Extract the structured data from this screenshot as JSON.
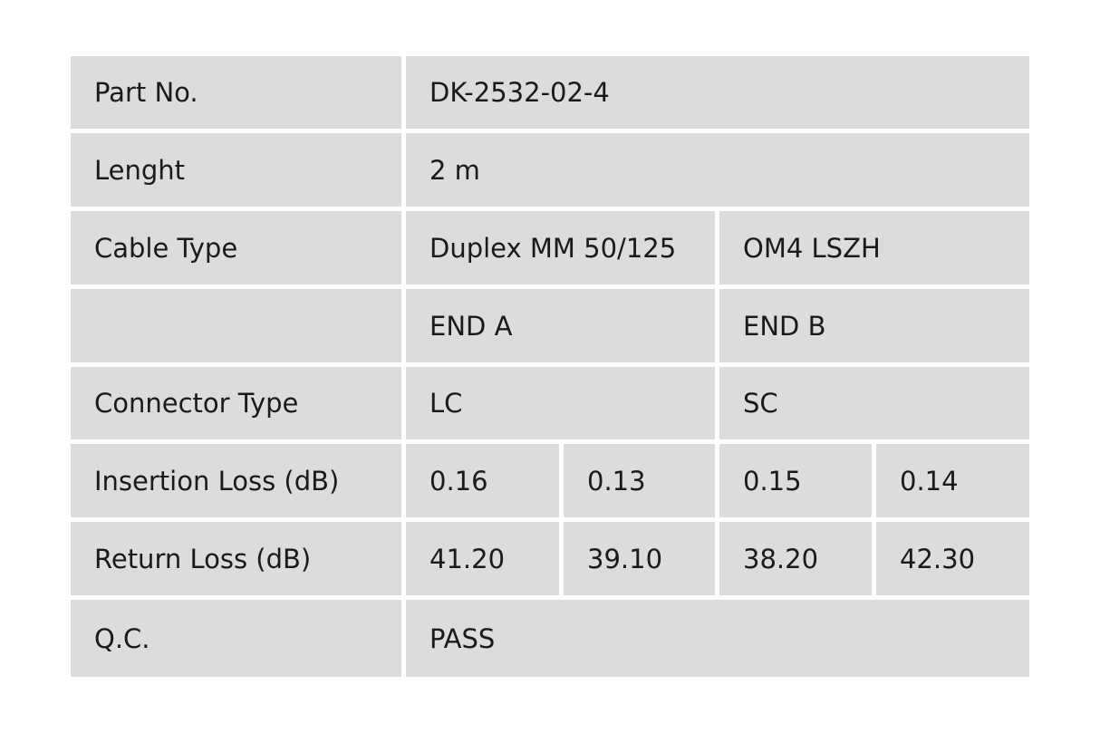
{
  "rows": {
    "part_no": {
      "label": "Part No.",
      "value": "DK-2532-02-4"
    },
    "length": {
      "label": "Lenght",
      "value": "2 m"
    },
    "cable_type": {
      "label": "Cable Type",
      "value_a": "Duplex MM 50/125",
      "value_b": "OM4 LSZH"
    },
    "ends": {
      "label": "",
      "end_a": "END A",
      "end_b": "END B"
    },
    "connector_type": {
      "label": "Connector Type",
      "end_a": "LC",
      "end_b": "SC"
    },
    "insertion_loss": {
      "label": "Insertion Loss (dB)",
      "values": [
        "0.16",
        "0.13",
        "0.15",
        "0.14"
      ]
    },
    "return_loss": {
      "label": "Return Loss (dB)",
      "values": [
        "41.20",
        "39.10",
        "38.20",
        "42.30"
      ]
    },
    "qc": {
      "label": "Q.C.",
      "value": "PASS"
    }
  },
  "colors": {
    "cell_background": "#dcdcdb",
    "gap": "#ffffff",
    "text": "#1a1a1a"
  }
}
